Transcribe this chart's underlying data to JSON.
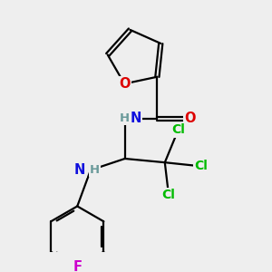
{
  "bg_color": "#eeeeee",
  "atom_colors": {
    "C": "#000000",
    "H": "#6a9a9a",
    "N": "#1010dd",
    "O": "#dd0000",
    "F": "#cc00cc",
    "Cl": "#00bb00"
  },
  "bond_color": "#000000",
  "bond_width": 1.6,
  "figsize": [
    3.0,
    3.0
  ],
  "dpi": 100,
  "font_size": 10.5
}
